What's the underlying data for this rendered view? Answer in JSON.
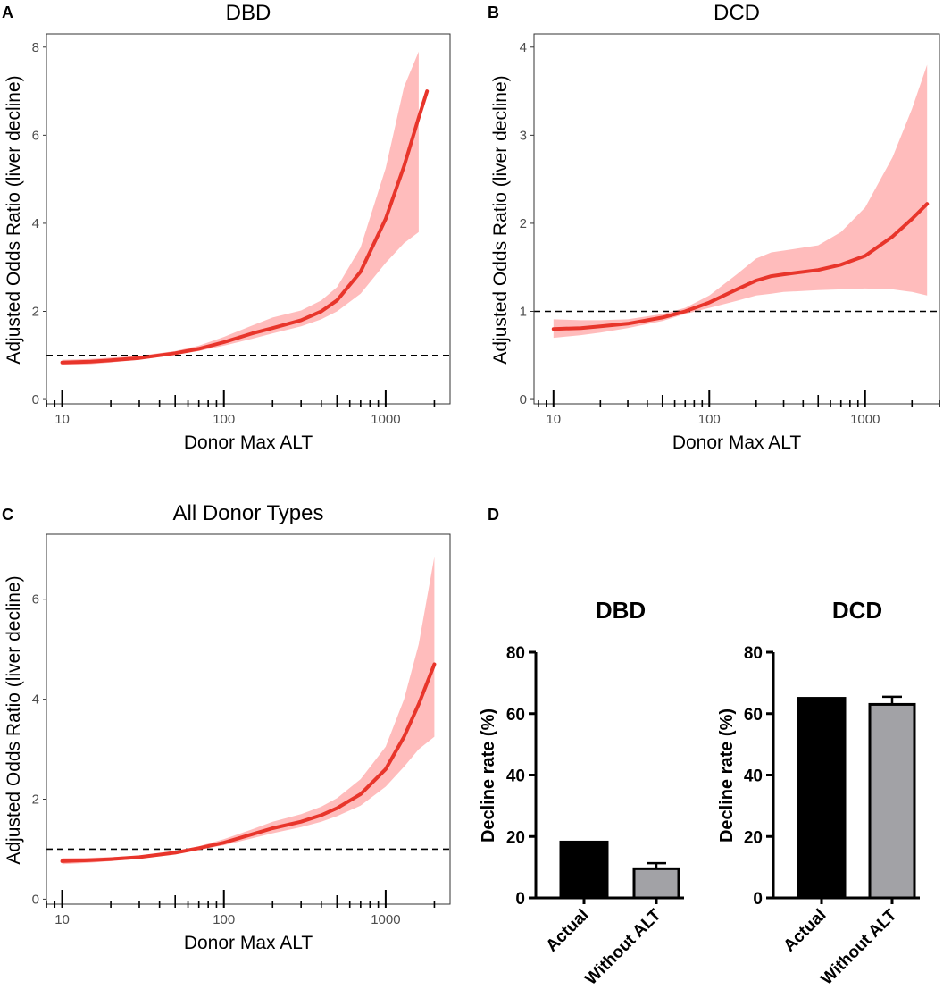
{
  "colors": {
    "curve": "#e8352b",
    "ci_band": "#ffb8b8",
    "bar_actual": "#000000",
    "bar_without": "#a2a2a6"
  },
  "panels": {
    "A": {
      "letter": "A"
    },
    "B": {
      "letter": "B"
    },
    "C": {
      "letter": "C"
    },
    "D": {
      "letter": "D"
    }
  },
  "chart_data": [
    {
      "id": "A",
      "type": "line",
      "title": "DBD",
      "xlabel": "Donor Max ALT",
      "ylabel": "Adjusted Odds Ratio (liver decline)",
      "xscale": "log",
      "xlim": [
        8,
        2500
      ],
      "ylim": [
        -0.1,
        8.3
      ],
      "xticks": [
        10,
        100,
        1000
      ],
      "xtick_labels": [
        "10",
        "100",
        "1000"
      ],
      "yticks": [
        0,
        2,
        4,
        6,
        8
      ],
      "ytick_labels": [
        "0",
        "2",
        "4",
        "6",
        "8"
      ],
      "reference_line": 1,
      "x": [
        10,
        15,
        20,
        30,
        50,
        70,
        100,
        150,
        200,
        300,
        400,
        500,
        700,
        1000,
        1300,
        1600,
        1800
      ],
      "y": [
        0.84,
        0.86,
        0.89,
        0.94,
        1.05,
        1.15,
        1.3,
        1.5,
        1.62,
        1.8,
        2.0,
        2.25,
        2.9,
        4.1,
        5.3,
        6.4,
        7.0
      ],
      "lower": [
        0.78,
        0.8,
        0.84,
        0.9,
        1.01,
        1.1,
        1.22,
        1.38,
        1.5,
        1.66,
        1.82,
        2.0,
        2.4,
        3.1,
        3.55,
        3.8,
        null
      ],
      "upper": [
        0.9,
        0.92,
        0.95,
        0.99,
        1.1,
        1.22,
        1.42,
        1.68,
        1.86,
        2.02,
        2.25,
        2.55,
        3.45,
        5.25,
        7.1,
        7.9,
        null
      ]
    },
    {
      "id": "B",
      "type": "line",
      "title": "DCD",
      "xlabel": "Donor Max ALT",
      "ylabel": "Adjusted Odds Ratio (liver decline)",
      "xscale": "log",
      "xlim": [
        7.5,
        3000
      ],
      "ylim": [
        -0.05,
        4.15
      ],
      "xticks": [
        10,
        100,
        1000
      ],
      "xtick_labels": [
        "10",
        "100",
        "1000"
      ],
      "yticks": [
        0,
        1,
        2,
        3,
        4
      ],
      "ytick_labels": [
        "0",
        "1",
        "2",
        "3",
        "4"
      ],
      "reference_line": 1,
      "x": [
        10,
        15,
        20,
        30,
        50,
        70,
        100,
        150,
        200,
        250,
        300,
        500,
        700,
        1000,
        1500,
        2000,
        2500
      ],
      "y": [
        0.8,
        0.81,
        0.83,
        0.86,
        0.93,
        1.0,
        1.1,
        1.25,
        1.35,
        1.4,
        1.42,
        1.47,
        1.53,
        1.63,
        1.85,
        2.05,
        2.22
      ],
      "lower": [
        0.7,
        0.73,
        0.76,
        0.81,
        0.89,
        0.97,
        1.04,
        1.12,
        1.18,
        1.2,
        1.22,
        1.24,
        1.25,
        1.26,
        1.25,
        1.22,
        1.18
      ],
      "upper": [
        0.91,
        0.9,
        0.9,
        0.91,
        0.97,
        1.04,
        1.18,
        1.42,
        1.6,
        1.67,
        1.69,
        1.75,
        1.9,
        2.18,
        2.75,
        3.3,
        3.8
      ]
    },
    {
      "id": "C",
      "type": "line",
      "title": "All Donor Types",
      "xlabel": "Donor Max ALT",
      "ylabel": "Adjusted Odds Ratio (liver decline)",
      "xscale": "log",
      "xlim": [
        8,
        2500
      ],
      "ylim": [
        -0.1,
        7.3
      ],
      "xticks": [
        10,
        100,
        1000
      ],
      "xtick_labels": [
        "10",
        "100",
        "1000"
      ],
      "yticks": [
        0,
        2,
        4,
        6
      ],
      "ytick_labels": [
        "0",
        "2",
        "4",
        "6"
      ],
      "reference_line": 1,
      "x": [
        10,
        15,
        20,
        30,
        50,
        70,
        100,
        150,
        200,
        300,
        400,
        500,
        700,
        1000,
        1300,
        1600,
        2000
      ],
      "y": [
        0.76,
        0.78,
        0.8,
        0.84,
        0.93,
        1.02,
        1.13,
        1.3,
        1.42,
        1.55,
        1.68,
        1.82,
        2.1,
        2.6,
        3.25,
        3.9,
        4.7
      ],
      "lower": [
        0.7,
        0.73,
        0.76,
        0.81,
        0.9,
        0.99,
        1.08,
        1.22,
        1.32,
        1.44,
        1.55,
        1.66,
        1.87,
        2.25,
        2.65,
        3.0,
        3.25
      ],
      "upper": [
        0.82,
        0.83,
        0.84,
        0.87,
        0.96,
        1.06,
        1.2,
        1.4,
        1.55,
        1.7,
        1.85,
        2.02,
        2.4,
        3.05,
        4.0,
        5.1,
        6.85
      ]
    },
    {
      "id": "D-DBD",
      "type": "bar",
      "title": "DBD",
      "xlabel": "",
      "ylabel": "Decline rate (%)",
      "ylim": [
        0,
        80
      ],
      "yticks": [
        0,
        20,
        40,
        60,
        80
      ],
      "ytick_labels": [
        "0",
        "20",
        "40",
        "60",
        "80"
      ],
      "categories": [
        "Actual",
        "Without ALT"
      ],
      "values": [
        18.2,
        9.5
      ],
      "errors": [
        0,
        1.8
      ]
    },
    {
      "id": "D-DCD",
      "type": "bar",
      "title": "DCD",
      "xlabel": "",
      "ylabel": "Decline rate (%)",
      "ylim": [
        0,
        80
      ],
      "yticks": [
        0,
        20,
        40,
        60,
        80
      ],
      "ytick_labels": [
        "0",
        "20",
        "40",
        "60",
        "80"
      ],
      "categories": [
        "Actual",
        "Without ALT"
      ],
      "values": [
        65.0,
        63.0
      ],
      "errors": [
        0,
        2.5
      ]
    }
  ]
}
